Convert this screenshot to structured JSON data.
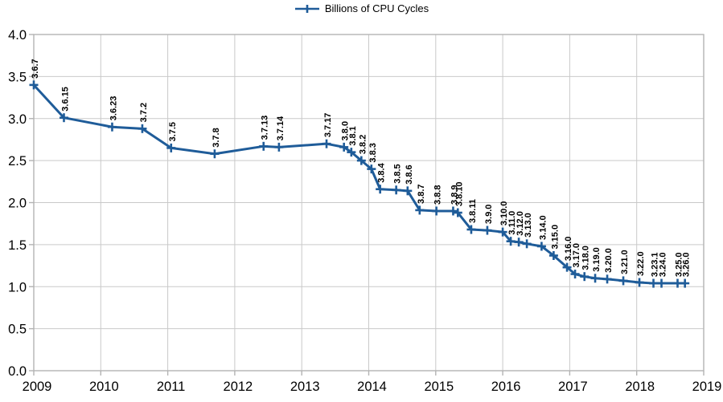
{
  "chart_data": {
    "type": "line",
    "title": "",
    "legend_position": "top-center",
    "grid": true,
    "colors": {
      "series": "#1F5C99",
      "grid": "#C9C9C9",
      "axis_border": "#B3B3B3",
      "text": "#000000"
    },
    "x_axis": {
      "range": [
        2009,
        2019
      ],
      "tick_labels": [
        "2009",
        "2010",
        "2011",
        "2012",
        "2013",
        "2014",
        "2015",
        "2016",
        "2017",
        "2018",
        "2019"
      ],
      "tick_values": [
        2009,
        2010,
        2011,
        2012,
        2013,
        2014,
        2015,
        2016,
        2017,
        2018,
        2019
      ]
    },
    "y_axis": {
      "range": [
        0.0,
        4.0
      ],
      "tick_labels": [
        "0.0",
        "0.5",
        "1.0",
        "1.5",
        "2.0",
        "2.5",
        "3.0",
        "3.5",
        "4.0"
      ],
      "tick_values": [
        0.0,
        0.5,
        1.0,
        1.5,
        2.0,
        2.5,
        3.0,
        3.5,
        4.0
      ]
    },
    "series": [
      {
        "name": "Billions of CPU Cycles",
        "marker": "plus",
        "points": [
          {
            "label": "3.6.7",
            "x": 2009.0,
            "y": 3.4
          },
          {
            "label": "3.6.15",
            "x": 2009.45,
            "y": 3.01
          },
          {
            "label": "3.6.23",
            "x": 2010.17,
            "y": 2.9
          },
          {
            "label": "3.7.2",
            "x": 2010.62,
            "y": 2.88
          },
          {
            "label": "3.7.5",
            "x": 2011.05,
            "y": 2.65
          },
          {
            "label": "3.7.8",
            "x": 2011.7,
            "y": 2.58
          },
          {
            "label": "3.7.13",
            "x": 2012.43,
            "y": 2.67
          },
          {
            "label": "3.7.14",
            "x": 2012.66,
            "y": 2.66
          },
          {
            "label": "3.7.17",
            "x": 2013.37,
            "y": 2.7
          },
          {
            "label": "3.8.0",
            "x": 2013.63,
            "y": 2.66
          },
          {
            "label": "3.8.1",
            "x": 2013.74,
            "y": 2.6
          },
          {
            "label": "3.8.2",
            "x": 2013.89,
            "y": 2.5
          },
          {
            "label": "3.8.3",
            "x": 2014.04,
            "y": 2.4
          },
          {
            "label": "3.8.4",
            "x": 2014.17,
            "y": 2.16
          },
          {
            "label": "3.8.5",
            "x": 2014.41,
            "y": 2.15
          },
          {
            "label": "3.8.6",
            "x": 2014.58,
            "y": 2.14
          },
          {
            "label": "3.8.7",
            "x": 2014.76,
            "y": 1.91
          },
          {
            "label": "3.8.8",
            "x": 2015.01,
            "y": 1.9
          },
          {
            "label": "3.8.9",
            "x": 2015.26,
            "y": 1.9
          },
          {
            "label": "3.8.10",
            "x": 2015.33,
            "y": 1.88
          },
          {
            "label": "3.8.11",
            "x": 2015.53,
            "y": 1.68
          },
          {
            "label": "3.9.0",
            "x": 2015.77,
            "y": 1.67
          },
          {
            "label": "3.10.0",
            "x": 2016.0,
            "y": 1.65
          },
          {
            "label": "3.11.0",
            "x": 2016.12,
            "y": 1.54
          },
          {
            "label": "3.12.0",
            "x": 2016.24,
            "y": 1.53
          },
          {
            "label": "3.13.0",
            "x": 2016.36,
            "y": 1.51
          },
          {
            "label": "3.14.0",
            "x": 2016.58,
            "y": 1.48
          },
          {
            "label": "3.15.0",
            "x": 2016.76,
            "y": 1.37
          },
          {
            "label": "3.16.0",
            "x": 2016.96,
            "y": 1.23
          },
          {
            "label": "3.17.0",
            "x": 2017.08,
            "y": 1.15
          },
          {
            "label": "3.18.0",
            "x": 2017.22,
            "y": 1.12
          },
          {
            "label": "3.19.0",
            "x": 2017.38,
            "y": 1.1
          },
          {
            "label": "3.20.0",
            "x": 2017.56,
            "y": 1.09
          },
          {
            "label": "3.21.0",
            "x": 2017.8,
            "y": 1.07
          },
          {
            "label": "3.22.0",
            "x": 2018.04,
            "y": 1.05
          },
          {
            "label": "3.23.1",
            "x": 2018.25,
            "y": 1.04
          },
          {
            "label": "3.24.0",
            "x": 2018.37,
            "y": 1.04
          },
          {
            "label": "3.25.0",
            "x": 2018.61,
            "y": 1.04
          },
          {
            "label": "3.26.0",
            "x": 2018.72,
            "y": 1.04
          }
        ]
      }
    ]
  }
}
